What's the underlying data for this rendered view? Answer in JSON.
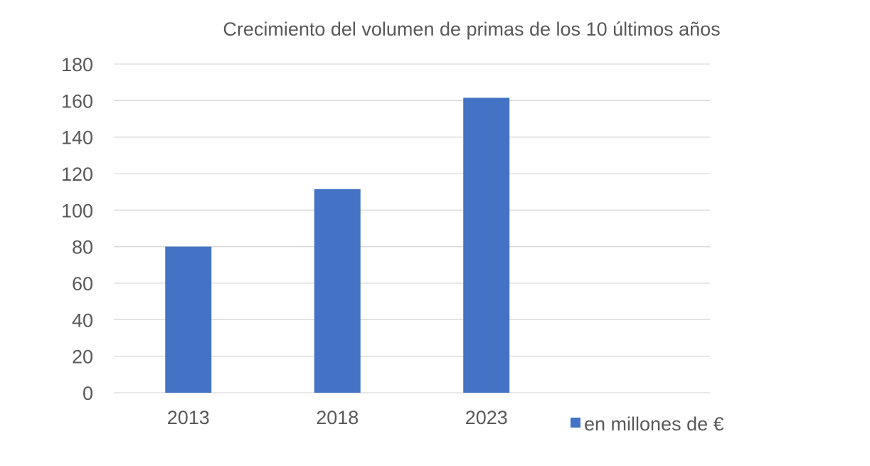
{
  "chart_data": {
    "type": "bar",
    "title": "Crecimiento del volumen de primas de los 10 últimos años",
    "categories": [
      "2013",
      "2018",
      "2023"
    ],
    "series": [
      {
        "name": "en millones de €",
        "values": [
          80,
          111.5,
          161.5
        ],
        "color": "#4472c4"
      }
    ],
    "xlabel": "",
    "ylabel": "",
    "ylim": [
      0,
      180
    ],
    "yticks": [
      "0",
      "20",
      "40",
      "60",
      "80",
      "100",
      "120",
      "140",
      "160",
      "180"
    ],
    "grid": true,
    "legend_position": "bottom-right"
  }
}
